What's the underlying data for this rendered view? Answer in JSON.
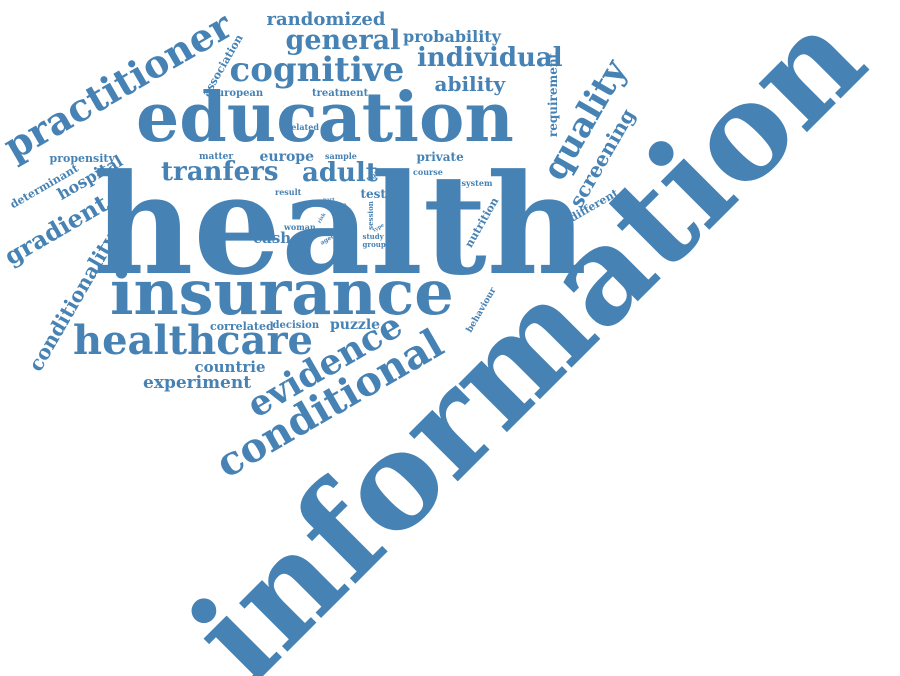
{
  "color": "#4682b4",
  "words": [
    {
      "id": "information",
      "text": "information",
      "weight": 10,
      "rotate": -45
    },
    {
      "id": "health",
      "text": "health",
      "weight": 10,
      "rotate": 0
    },
    {
      "id": "education",
      "text": "education",
      "weight": 8,
      "rotate": 0
    },
    {
      "id": "insurance",
      "text": "insurance",
      "weight": 8,
      "rotate": 0
    },
    {
      "id": "healthcare",
      "text": "healthcare",
      "weight": 6,
      "rotate": 0
    },
    {
      "id": "conditional",
      "text": "conditional",
      "weight": 6,
      "rotate": -30
    },
    {
      "id": "evidence",
      "text": "evidence",
      "weight": 5,
      "rotate": -30
    },
    {
      "id": "practitioner",
      "text": "practitioner",
      "weight": 5,
      "rotate": -30
    },
    {
      "id": "cognitive",
      "text": "cognitive",
      "weight": 5,
      "rotate": 0
    },
    {
      "id": "quality",
      "text": "quality",
      "weight": 5,
      "rotate": -60
    },
    {
      "id": "general",
      "text": "general",
      "weight": 4,
      "rotate": 0
    },
    {
      "id": "individual",
      "text": "individual",
      "weight": 4,
      "rotate": 0
    },
    {
      "id": "tranfers",
      "text": "tranfers",
      "weight": 4,
      "rotate": 0
    },
    {
      "id": "adult",
      "text": "adult",
      "weight": 4,
      "rotate": 0
    },
    {
      "id": "gradient",
      "text": "gradient",
      "weight": 3,
      "rotate": -30
    },
    {
      "id": "conditionality",
      "text": "conditionality",
      "weight": 3,
      "rotate": -60
    },
    {
      "id": "screening",
      "text": "screening",
      "weight": 3,
      "rotate": -60
    },
    {
      "id": "ability",
      "text": "ability",
      "weight": 3,
      "rotate": 0
    },
    {
      "id": "randomized",
      "text": "randomized",
      "weight": 3,
      "rotate": 0
    },
    {
      "id": "probability",
      "text": "probability",
      "weight": 2,
      "rotate": 0
    },
    {
      "id": "experiment",
      "text": "experiment",
      "weight": 2,
      "rotate": 0
    },
    {
      "id": "countrie",
      "text": "countrie",
      "weight": 2,
      "rotate": 0
    },
    {
      "id": "hospital",
      "text": "hospital",
      "weight": 2,
      "rotate": -30
    },
    {
      "id": "cash",
      "text": "cash",
      "weight": 2,
      "rotate": 0
    },
    {
      "id": "puzzle",
      "text": "puzzle",
      "weight": 2,
      "rotate": 0
    },
    {
      "id": "europe",
      "text": "europe",
      "weight": 2,
      "rotate": 0
    },
    {
      "id": "nutrition",
      "text": "nutrition",
      "weight": 1,
      "rotate": -60
    },
    {
      "id": "different",
      "text": "different",
      "weight": 1,
      "rotate": -30
    },
    {
      "id": "requirement",
      "text": "requirement",
      "weight": 1,
      "rotate": -90
    },
    {
      "id": "association",
      "text": "association",
      "weight": 1,
      "rotate": -60
    },
    {
      "id": "determinant",
      "text": "determinant",
      "weight": 1,
      "rotate": -30
    },
    {
      "id": "propensity",
      "text": "propensity",
      "weight": 1,
      "rotate": 0
    },
    {
      "id": "european",
      "text": "european",
      "weight": 1,
      "rotate": 0
    },
    {
      "id": "treatment",
      "text": "treatment",
      "weight": 1,
      "rotate": 0
    },
    {
      "id": "private",
      "text": "private",
      "weight": 1,
      "rotate": 0
    },
    {
      "id": "test",
      "text": "test",
      "weight": 1,
      "rotate": 0
    },
    {
      "id": "correlated",
      "text": "correlated",
      "weight": 1,
      "rotate": 0
    },
    {
      "id": "decision",
      "text": "decision",
      "weight": 1,
      "rotate": 0
    },
    {
      "id": "behaviour",
      "text": "behaviour",
      "weight": 1,
      "rotate": -60
    },
    {
      "id": "matter",
      "text": "matter",
      "weight": 1,
      "rotate": 0
    },
    {
      "id": "sample",
      "text": "sample",
      "weight": 1,
      "rotate": 0
    },
    {
      "id": "related",
      "text": "related",
      "weight": 1,
      "rotate": 0
    },
    {
      "id": "result",
      "text": "result",
      "weight": 1,
      "rotate": 0
    },
    {
      "id": "course",
      "text": "course",
      "weight": 1,
      "rotate": 0
    },
    {
      "id": "system",
      "text": "system",
      "weight": 1,
      "rotate": 0
    },
    {
      "id": "woman",
      "text": "woman",
      "weight": 1,
      "rotate": 0
    },
    {
      "id": "session",
      "text": "session",
      "weight": 1,
      "rotate": -90
    },
    {
      "id": "study",
      "text": "study",
      "weight": 1,
      "rotate": 0
    },
    {
      "id": "group",
      "text": "group",
      "weight": 1,
      "rotate": 0
    },
    {
      "id": "role",
      "text": "role",
      "weight": 1,
      "rotate": -60
    },
    {
      "id": "aged",
      "text": "aged",
      "weight": 1,
      "rotate": -30
    },
    {
      "id": "right",
      "text": "right",
      "weight": 1,
      "rotate": -30
    },
    {
      "id": "part",
      "text": "part",
      "weight": 1,
      "rotate": 0
    },
    {
      "id": "type",
      "text": "type",
      "weight": 1,
      "rotate": -30
    },
    {
      "id": "rate",
      "text": "rate",
      "weight": 1,
      "rotate": -30
    },
    {
      "id": "risk",
      "text": "risk",
      "weight": 1,
      "rotate": -60
    }
  ]
}
